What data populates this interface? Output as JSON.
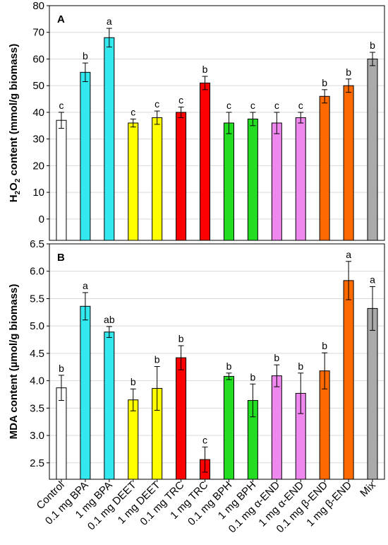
{
  "chart_data": [
    {
      "panel_label": "A",
      "type": "bar",
      "ylabel_parts": [
        "H",
        "2",
        "O",
        "2",
        " content (mmol/g biomass)"
      ],
      "ylim": [
        -8,
        80
      ],
      "yticks": [
        "0",
        "10",
        "20",
        "30",
        "40",
        "50",
        "60",
        "70",
        "80"
      ],
      "ytick_values": [
        0,
        10,
        20,
        30,
        40,
        50,
        60,
        70,
        80
      ],
      "grid": true,
      "values": [
        37,
        55,
        68,
        36,
        38,
        40,
        51,
        36,
        37.5,
        36,
        38,
        46,
        50,
        60
      ],
      "errors": [
        3,
        3.5,
        3.5,
        1.5,
        2.5,
        2,
        2.5,
        4,
        2.5,
        4,
        2,
        2.5,
        2.5,
        2.5
      ],
      "letters": [
        "c",
        "b",
        "a",
        "c",
        "c",
        "c",
        "b",
        "c",
        "c",
        "c",
        "c",
        "b",
        "b",
        "b"
      ]
    },
    {
      "panel_label": "B",
      "type": "bar",
      "ylabel": "MDA content (µmol/g biomass)",
      "ylim": [
        2.2,
        6.5
      ],
      "yticks": [
        "2.5",
        "3.0",
        "3.5",
        "4.0",
        "4.5",
        "5.0",
        "5.5",
        "6.0",
        "6.5"
      ],
      "ytick_values": [
        2.5,
        3.0,
        3.5,
        4.0,
        4.5,
        5.0,
        5.5,
        6.0,
        6.5
      ],
      "grid": true,
      "values": [
        3.87,
        5.36,
        4.89,
        3.65,
        3.86,
        4.42,
        2.56,
        4.08,
        3.64,
        4.09,
        3.77,
        4.18,
        5.83,
        5.32
      ],
      "errors": [
        0.23,
        0.25,
        0.1,
        0.2,
        0.4,
        0.22,
        0.23,
        0.06,
        0.3,
        0.2,
        0.37,
        0.33,
        0.35,
        0.4
      ],
      "letters": [
        "b",
        "a",
        "ab",
        "b",
        "b",
        "b",
        "c",
        "b",
        "b",
        "b",
        "b",
        "b",
        "a",
        "a"
      ]
    }
  ],
  "categories": [
    "Control",
    "0.1 mg BPA",
    "1 mg BPA",
    "0.1 mg DEET",
    "1 mg DEET",
    "0.1 mg TRC",
    "1 mg TRC",
    "0.1 mg BPH",
    "1 mg BPH",
    "0.1 mg α-END",
    "1 mg α-END",
    "0.1 mg β-END",
    "1 mg β-END",
    "Mix"
  ],
  "colors": [
    "#ffffff",
    "#33e8ee",
    "#33e8ee",
    "#ffff00",
    "#ffff00",
    "#ff0000",
    "#ff0000",
    "#22dd22",
    "#22dd22",
    "#ee88ee",
    "#ee88ee",
    "#ff6a00",
    "#ff6a00",
    "#aaaaaa"
  ]
}
